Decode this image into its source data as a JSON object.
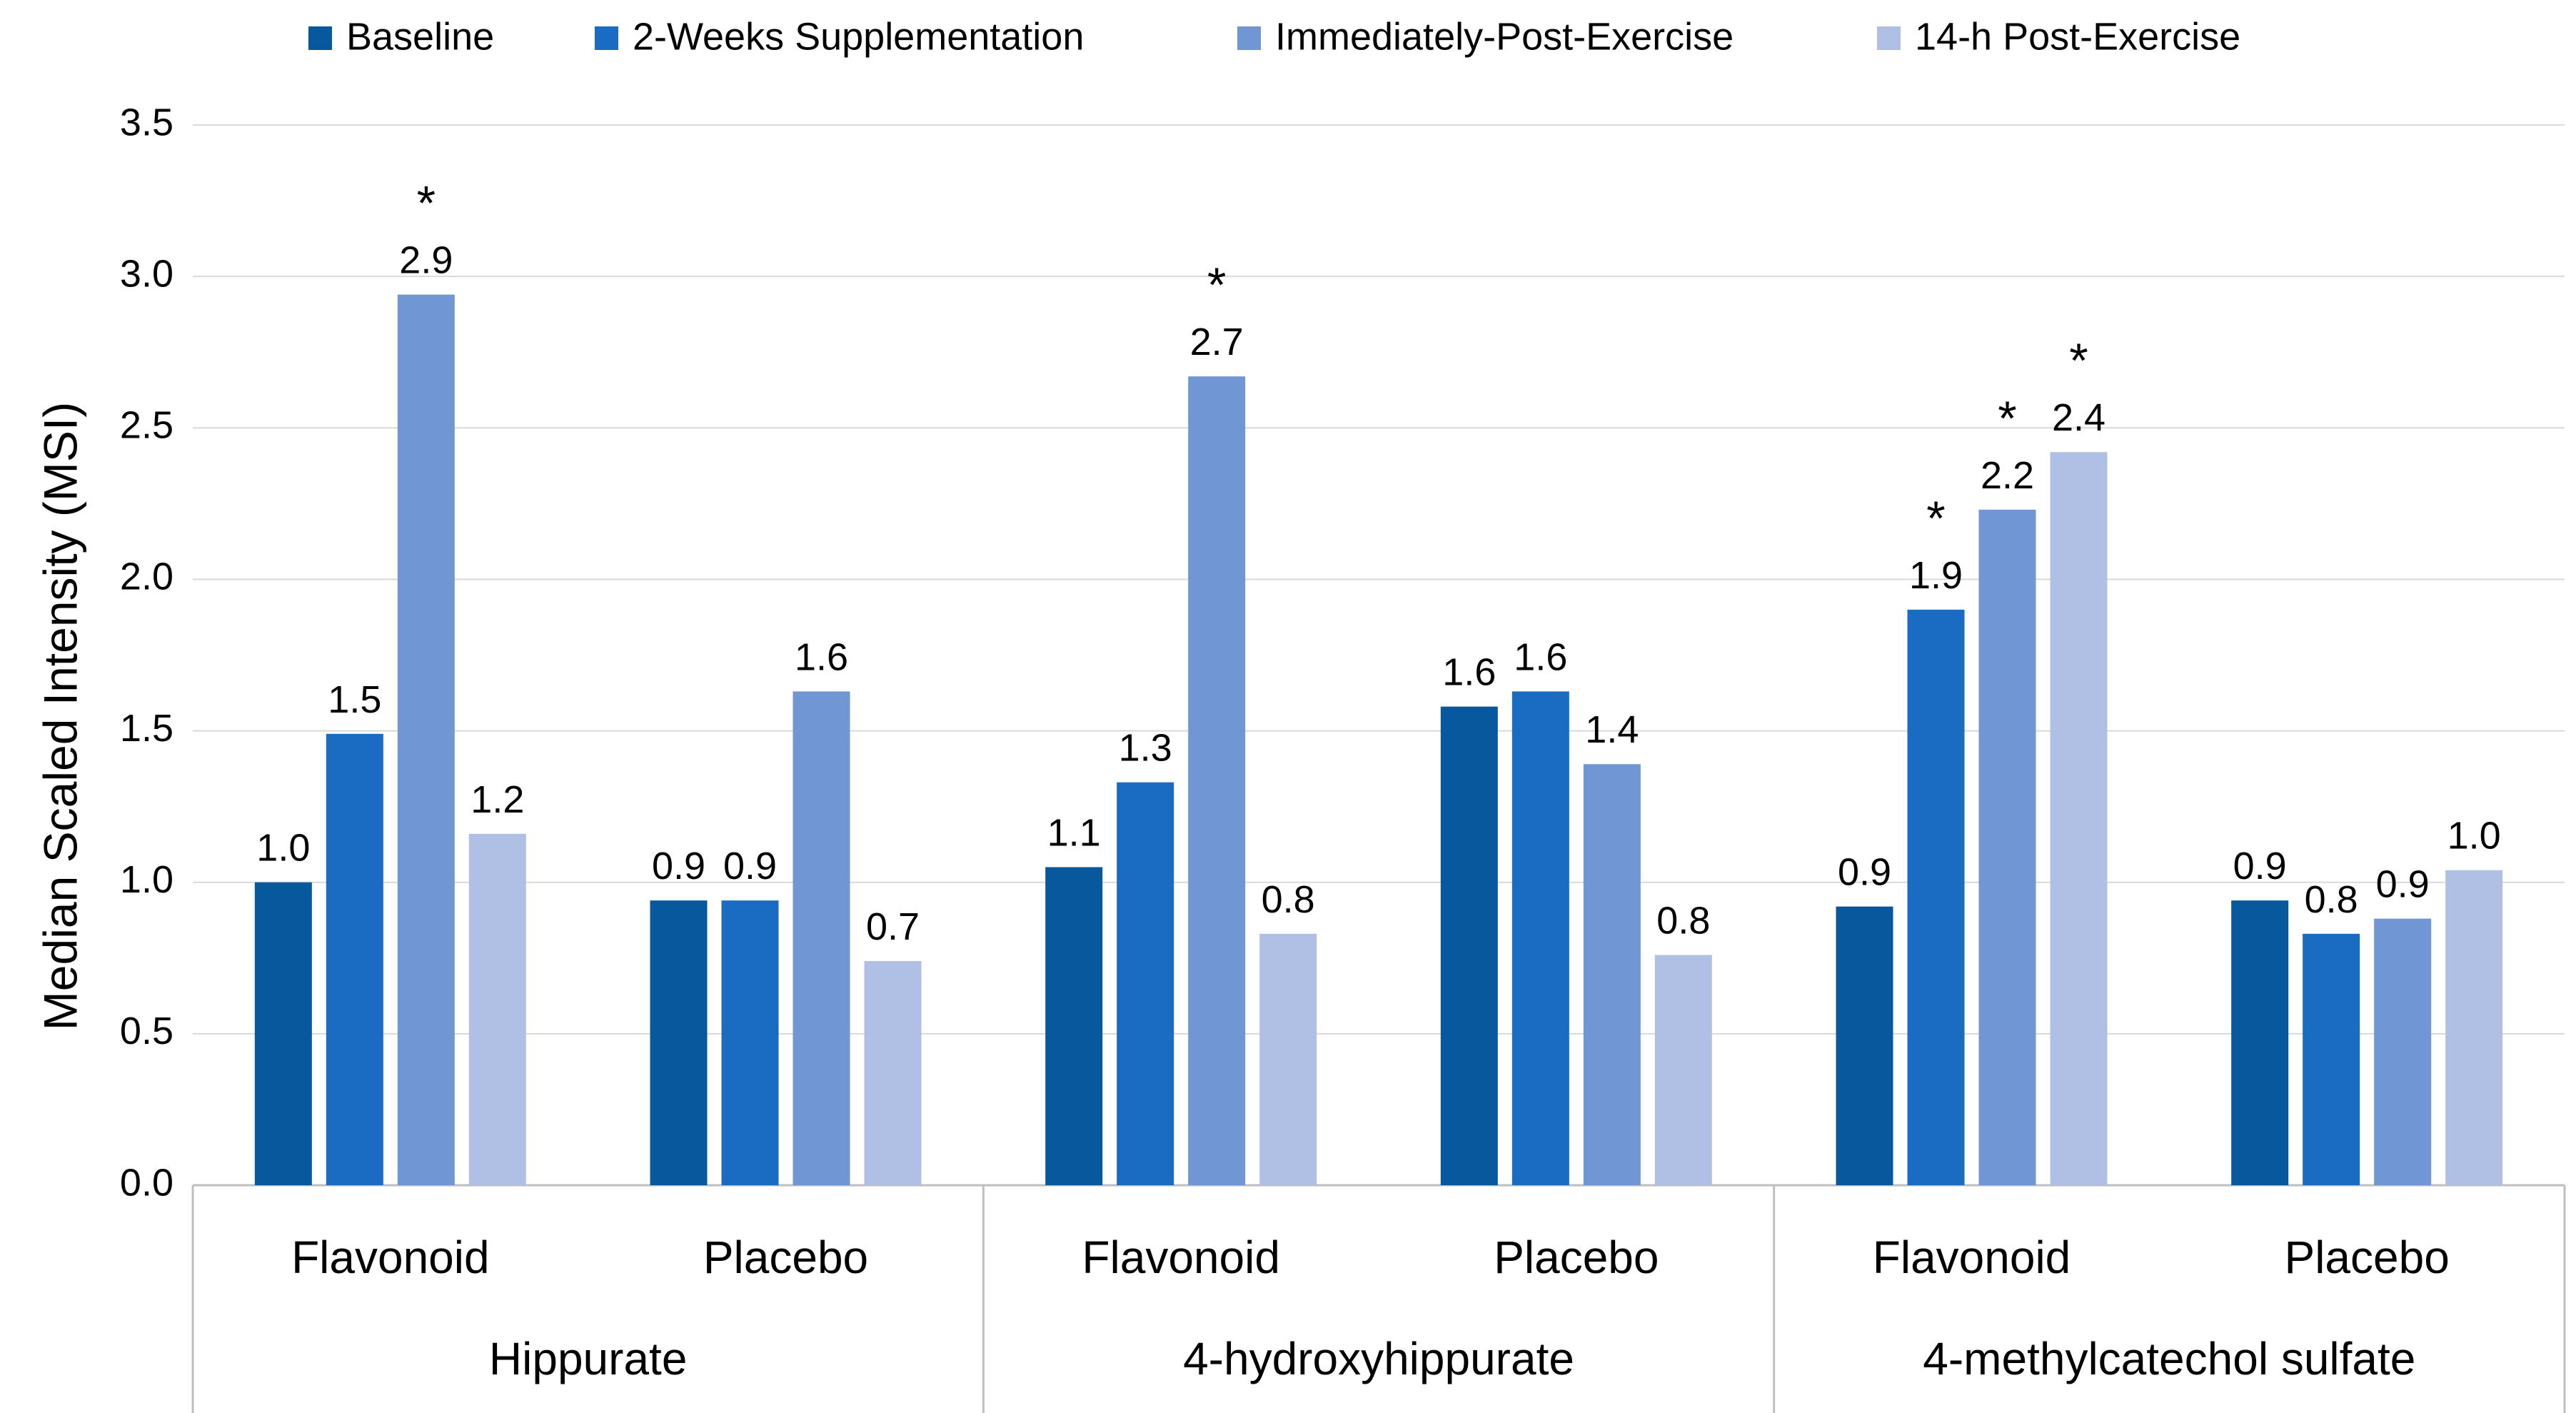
{
  "chart_data": {
    "type": "bar",
    "ylabel": "Median Scaled Intensity (MSI)",
    "ylim": [
      0.0,
      3.5
    ],
    "yticks": [
      "0.0",
      "0.5",
      "1.0",
      "1.5",
      "2.0",
      "2.5",
      "3.0",
      "3.5"
    ],
    "grid": true,
    "legend_position": "top",
    "series": [
      {
        "name": "Baseline",
        "color": "#08589e"
      },
      {
        "name": "2-Weeks Supplementation",
        "color": "#1a6cc2"
      },
      {
        "name": "Immediately-Post-Exercise",
        "color": "#7096d4"
      },
      {
        "name": "14-h Post-Exercise",
        "color": "#b0c0e4"
      }
    ],
    "groups": [
      {
        "name": "Hippurate",
        "categories": [
          {
            "name": "Flavonoid",
            "values": [
              1.0,
              1.49,
              2.94,
              1.16
            ],
            "labels": [
              "1.0",
              "1.5",
              "2.9",
              "1.2"
            ],
            "significant": [
              false,
              false,
              true,
              false
            ]
          },
          {
            "name": "Placebo",
            "values": [
              0.94,
              0.94,
              1.63,
              0.74
            ],
            "labels": [
              "0.9",
              "0.9",
              "1.6",
              "0.7"
            ],
            "significant": [
              false,
              false,
              false,
              false
            ]
          }
        ]
      },
      {
        "name": "4-hydroxyhippurate",
        "categories": [
          {
            "name": "Flavonoid",
            "values": [
              1.05,
              1.33,
              2.67,
              0.83
            ],
            "labels": [
              "1.1",
              "1.3",
              "2.7",
              "0.8"
            ],
            "significant": [
              false,
              false,
              true,
              false
            ]
          },
          {
            "name": "Placebo",
            "values": [
              1.58,
              1.63,
              1.39,
              0.76
            ],
            "labels": [
              "1.6",
              "1.6",
              "1.4",
              "0.8"
            ],
            "significant": [
              false,
              false,
              false,
              false
            ]
          }
        ]
      },
      {
        "name": "4-methylcatechol sulfate",
        "categories": [
          {
            "name": "Flavonoid",
            "values": [
              0.92,
              1.9,
              2.23,
              2.42
            ],
            "labels": [
              "0.9",
              "1.9",
              "2.2",
              "2.4"
            ],
            "significant": [
              false,
              true,
              true,
              true
            ]
          },
          {
            "name": "Placebo",
            "values": [
              0.94,
              0.83,
              0.88,
              1.04
            ],
            "labels": [
              "0.9",
              "0.8",
              "0.9",
              "1.0"
            ],
            "significant": [
              false,
              false,
              false,
              false
            ]
          }
        ]
      }
    ],
    "significance_marker": "*"
  }
}
